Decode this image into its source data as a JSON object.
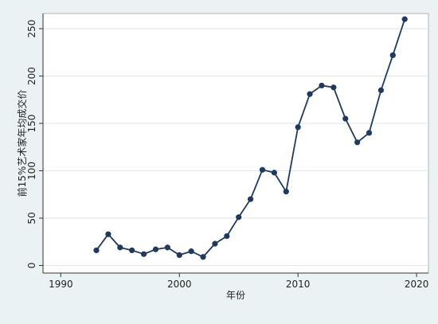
{
  "chart_data": {
    "type": "line",
    "xlabel": "年份",
    "ylabel": "前15%艺术家年均成交价",
    "xlim": [
      1988.5,
      2021
    ],
    "ylim": [
      -8,
      266
    ],
    "x_ticks": [
      1990,
      2000,
      2010,
      2020
    ],
    "y_ticks": [
      0,
      50,
      100,
      150,
      200,
      250
    ],
    "grid": true,
    "series": [
      {
        "x": [
          1993,
          1994,
          1995,
          1996,
          1997,
          1998,
          1999,
          2000,
          2001,
          2002,
          2003,
          2004,
          2005,
          2006,
          2007,
          2008,
          2009,
          2010,
          2011,
          2012,
          2013,
          2014,
          2015,
          2016,
          2017,
          2018,
          2019
        ],
        "y": [
          16,
          33,
          19,
          16,
          12,
          17,
          19,
          11,
          15,
          9,
          23,
          31,
          51,
          70,
          101,
          98,
          78,
          146,
          181,
          190,
          188,
          155,
          130,
          140,
          185,
          222,
          260
        ]
      }
    ],
    "colors": {
      "line": "#1f3a5c",
      "marker": "#1f3a5c",
      "plot_bg": "#ffffff",
      "frame_bg": "#eaf2f3",
      "grid": "#dde5ea"
    }
  }
}
